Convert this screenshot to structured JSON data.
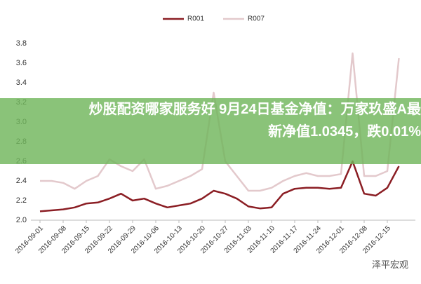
{
  "chart_data": {
    "type": "line",
    "categories": [
      "2016-09-01",
      null,
      "2016-09-08",
      null,
      "2016-09-15",
      null,
      "2016-09-22",
      null,
      "2016-09-29",
      null,
      "2016-10-06",
      null,
      "2016-10-13",
      null,
      "2016-10-20",
      null,
      "2016-10-27",
      null,
      "2016-11-03",
      null,
      "2016-11-10",
      null,
      "2016-11-17",
      null,
      "2016-11-24",
      null,
      "2016-12-01",
      null,
      "2016-12-08",
      null,
      "2016-12-15",
      null
    ],
    "series": [
      {
        "name": "R001",
        "color": "#8b1e24",
        "values": [
          2.09,
          2.1,
          2.11,
          2.13,
          2.17,
          2.18,
          2.22,
          2.27,
          2.2,
          2.22,
          2.17,
          2.13,
          2.15,
          2.17,
          2.22,
          2.3,
          2.27,
          2.22,
          2.14,
          2.12,
          2.13,
          2.27,
          2.32,
          2.33,
          2.33,
          2.32,
          2.33,
          2.6,
          2.27,
          2.25,
          2.33,
          2.55
        ]
      },
      {
        "name": "R007",
        "color": "#e3c9cc",
        "values": [
          2.4,
          2.4,
          2.38,
          2.32,
          2.4,
          2.45,
          2.62,
          2.55,
          2.5,
          2.62,
          2.32,
          2.35,
          2.4,
          2.45,
          2.52,
          3.3,
          2.6,
          2.45,
          2.3,
          2.3,
          2.33,
          2.4,
          2.45,
          2.48,
          2.45,
          2.45,
          2.47,
          3.7,
          2.45,
          2.45,
          2.5,
          3.65
        ]
      }
    ],
    "ylim": [
      2,
      3.8
    ],
    "yticks": [
      {
        "value": 2,
        "label": "2.0"
      },
      2.2,
      2.4,
      2.6,
      2.8,
      {
        "value": 3,
        "label": "3.0"
      },
      3.2,
      3.4,
      3.6,
      3.8
    ]
  },
  "overlay": {
    "lines": [
      "炒股配资哪家服务好 9月24日基金净值：万家玖盛A最",
      "新净值1.0345，跌0.01%"
    ]
  },
  "watermark": "泽平宏观"
}
